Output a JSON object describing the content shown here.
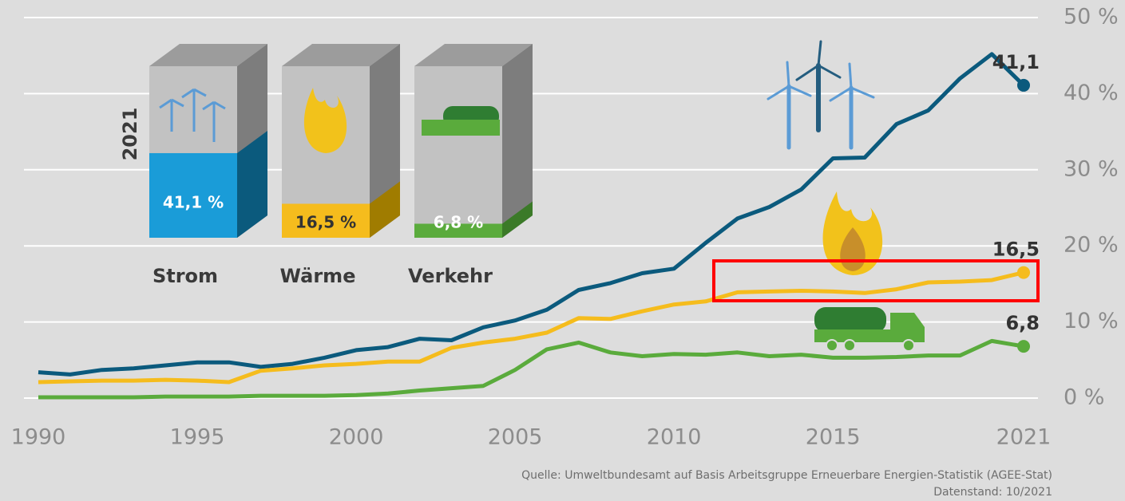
{
  "chart_data": {
    "type": "line",
    "x": [
      1990,
      1991,
      1992,
      1993,
      1994,
      1995,
      1996,
      1997,
      1998,
      1999,
      2000,
      2001,
      2002,
      2003,
      2004,
      2005,
      2006,
      2007,
      2008,
      2009,
      2010,
      2011,
      2012,
      2013,
      2014,
      2015,
      2016,
      2017,
      2018,
      2019,
      2020,
      2021
    ],
    "series": [
      {
        "name": "Strom",
        "color": "#0b5a7d",
        "values": [
          3.4,
          3.1,
          3.7,
          3.9,
          4.3,
          4.7,
          4.7,
          4.1,
          4.5,
          5.3,
          6.3,
          6.7,
          7.8,
          7.6,
          9.3,
          10.2,
          11.6,
          14.2,
          15.1,
          16.4,
          17.0,
          20.4,
          23.6,
          25.1,
          27.4,
          31.5,
          31.6,
          36.0,
          37.8,
          42.0,
          45.2,
          41.1
        ],
        "value_labels": [
          null,
          null,
          null,
          null,
          null,
          null,
          null,
          null,
          null,
          null,
          null,
          null,
          null,
          null,
          null,
          null,
          null,
          null,
          null,
          null,
          null,
          null,
          null,
          null,
          null,
          null,
          null,
          null,
          null,
          null,
          null,
          "41,1"
        ]
      },
      {
        "name": "Wärme",
        "color": "#f5bc1d",
        "values": [
          2.1,
          2.2,
          2.3,
          2.3,
          2.4,
          2.3,
          2.1,
          3.6,
          3.9,
          4.3,
          4.5,
          4.8,
          4.8,
          6.6,
          7.3,
          7.8,
          8.6,
          10.5,
          10.4,
          11.4,
          12.3,
          12.7,
          13.9,
          14.0,
          14.1,
          14.0,
          13.8,
          14.3,
          15.2,
          15.3,
          15.5,
          16.5
        ],
        "value_labels": [
          null,
          null,
          null,
          null,
          null,
          null,
          null,
          null,
          null,
          null,
          null,
          null,
          null,
          null,
          null,
          null,
          null,
          null,
          null,
          null,
          null,
          null,
          null,
          null,
          null,
          null,
          null,
          null,
          null,
          null,
          null,
          "16,5"
        ]
      },
      {
        "name": "Verkehr",
        "color": "#5aab3c",
        "values": [
          0.1,
          0.1,
          0.1,
          0.1,
          0.2,
          0.2,
          0.2,
          0.3,
          0.3,
          0.3,
          0.4,
          0.6,
          1.0,
          1.3,
          1.6,
          3.7,
          6.4,
          7.3,
          6.0,
          5.5,
          5.8,
          5.7,
          6.0,
          5.5,
          5.7,
          5.3,
          5.3,
          5.4,
          5.6,
          5.6,
          7.5,
          6.8
        ],
        "value_labels": [
          null,
          null,
          null,
          null,
          null,
          null,
          null,
          null,
          null,
          null,
          null,
          null,
          null,
          null,
          null,
          null,
          null,
          null,
          null,
          null,
          null,
          null,
          null,
          null,
          null,
          null,
          null,
          null,
          null,
          null,
          null,
          "6,8"
        ]
      }
    ],
    "xlim": [
      1990,
      2021
    ],
    "xticks": [
      1990,
      1995,
      2000,
      2005,
      2010,
      2015,
      2021
    ],
    "ylim": [
      0,
      50
    ],
    "yticks": [
      {
        "value": 0,
        "label": "0 %"
      },
      {
        "value": 10,
        "label": "10 %"
      },
      {
        "value": 20,
        "label": "20 %"
      },
      {
        "value": 30,
        "label": "30 %"
      },
      {
        "value": 40,
        "label": "40 %"
      },
      {
        "value": 50,
        "label": "50 %"
      }
    ],
    "grid": true,
    "inset": {
      "title": "2021",
      "categories": [
        "Strom",
        "Wärme",
        "Verkehr"
      ],
      "values": [
        41.1,
        16.5,
        6.8
      ],
      "value_labels": [
        "41,1 %",
        "16,5 %",
        "6,8 %"
      ]
    },
    "source": [
      "Quelle: Umweltbundesamt auf Basis Arbeitsgruppe Erneuerbare Energien-Statistik (AGEE-Stat)",
      "Datenstand: 10/2021"
    ]
  }
}
